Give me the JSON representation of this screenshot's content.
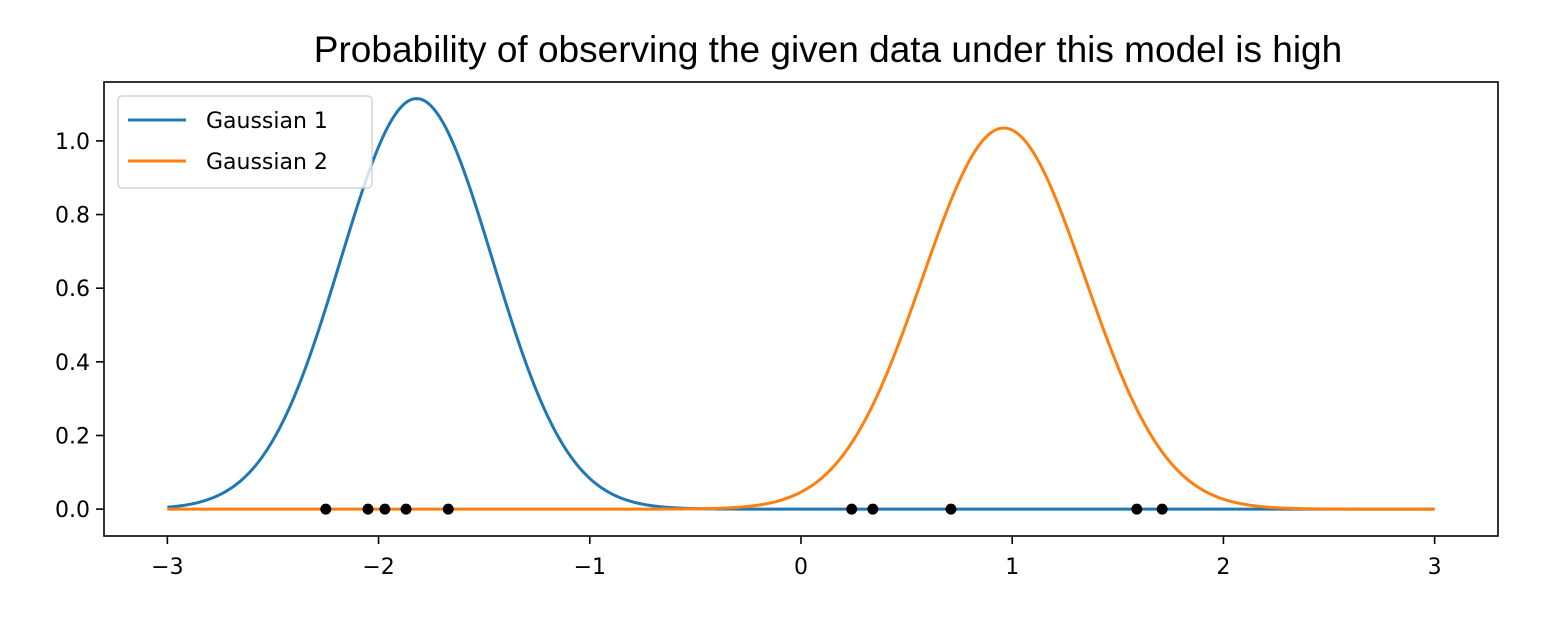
{
  "chart_data": {
    "type": "line",
    "title": "Probability of observing the given data under this model is high",
    "xlabel": "",
    "ylabel": "",
    "xlim": [
      -3.3,
      3.3
    ],
    "ylim": [
      -0.073,
      1.16
    ],
    "x_ticks": [
      -3,
      -2,
      -1,
      0,
      1,
      2,
      3
    ],
    "x_tick_labels": [
      "−3",
      "−2",
      "−1",
      "0",
      "1",
      "2",
      "3"
    ],
    "y_ticks": [
      0.0,
      0.2,
      0.4,
      0.6,
      0.8,
      1.0
    ],
    "y_tick_labels": [
      "0.0",
      "0.2",
      "0.4",
      "0.6",
      "0.8",
      "1.0"
    ],
    "grid": false,
    "legend_position": "upper-left",
    "x_range": [
      -3,
      3
    ],
    "series": [
      {
        "name": "Gaussian 1",
        "color": "#1f77b4",
        "mean": -1.82,
        "std": 0.36,
        "peak": 1.115
      },
      {
        "name": "Gaussian 2",
        "color": "#ff7f0e",
        "mean": 0.96,
        "std": 0.385,
        "peak": 1.035
      }
    ],
    "points": {
      "color": "#000000",
      "x": [
        -2.25,
        -2.05,
        -1.97,
        -1.87,
        -1.67,
        0.24,
        0.34,
        0.71,
        1.59,
        1.71
      ],
      "y": [
        0,
        0,
        0,
        0,
        0,
        0,
        0,
        0,
        0,
        0
      ]
    }
  }
}
